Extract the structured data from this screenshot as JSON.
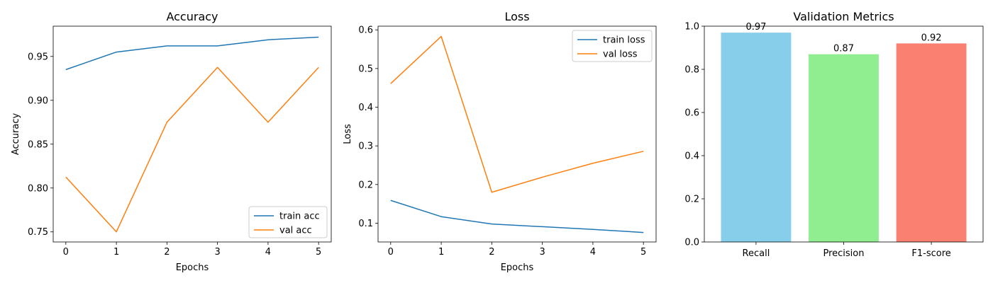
{
  "chart_data": [
    {
      "type": "line",
      "title": "Accuracy",
      "xlabel": "Epochs",
      "ylabel": "Accuracy",
      "x": [
        0,
        1,
        2,
        3,
        4,
        5
      ],
      "xlim": [
        -0.25,
        5.25
      ],
      "ylim": [
        0.7385,
        0.9845
      ],
      "xticks": [
        0,
        1,
        2,
        3,
        4,
        5
      ],
      "yticks": [
        0.75,
        0.8,
        0.85,
        0.9,
        0.95
      ],
      "ytick_labels": [
        "0.75",
        "0.80",
        "0.85",
        "0.90",
        "0.95"
      ],
      "legend_position": "lower right",
      "series": [
        {
          "name": "train acc",
          "color": "#1f77b4",
          "values": [
            0.935,
            0.955,
            0.962,
            0.962,
            0.969,
            0.972
          ]
        },
        {
          "name": "val acc",
          "color": "#ff7f0e",
          "values": [
            0.8125,
            0.75,
            0.875,
            0.9375,
            0.875,
            0.9375
          ]
        }
      ]
    },
    {
      "type": "line",
      "title": "Loss",
      "xlabel": "Epochs",
      "ylabel": "Loss",
      "x": [
        0,
        1,
        2,
        3,
        4,
        5
      ],
      "xlim": [
        -0.25,
        5.25
      ],
      "ylim": [
        0.0515,
        0.6095
      ],
      "xticks": [
        0,
        1,
        2,
        3,
        4,
        5
      ],
      "yticks": [
        0.1,
        0.2,
        0.3,
        0.4,
        0.5,
        0.6
      ],
      "ytick_labels": [
        "0.1",
        "0.2",
        "0.3",
        "0.4",
        "0.5",
        "0.6"
      ],
      "legend_position": "upper right",
      "series": [
        {
          "name": "train loss",
          "color": "#1f77b4",
          "values": [
            0.159,
            0.117,
            0.098,
            0.091,
            0.084,
            0.076
          ]
        },
        {
          "name": "val loss",
          "color": "#ff7f0e",
          "values": [
            0.461,
            0.583,
            0.18,
            0.219,
            0.255,
            0.286
          ]
        }
      ]
    },
    {
      "type": "bar",
      "title": "Validation Metrics",
      "categories": [
        "Recall",
        "Precision",
        "F1-score"
      ],
      "values": [
        0.97,
        0.87,
        0.92
      ],
      "data_labels": [
        "0.97",
        "0.87",
        "0.92"
      ],
      "colors": [
        "#87ceeb",
        "#90ee90",
        "#fa8072"
      ],
      "ylim": [
        0,
        1.0
      ],
      "yticks": [
        0.0,
        0.2,
        0.4,
        0.6,
        0.8,
        1.0
      ],
      "ytick_labels": [
        "0.0",
        "0.2",
        "0.4",
        "0.6",
        "0.8",
        "1.0"
      ]
    }
  ]
}
